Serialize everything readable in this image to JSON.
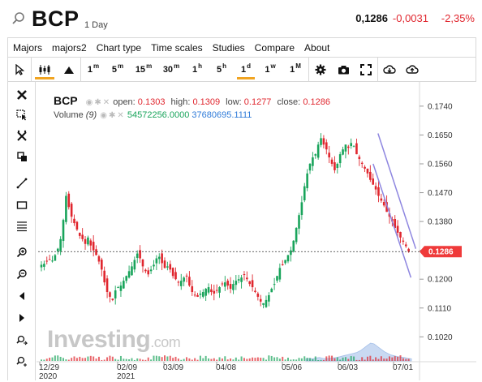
{
  "header": {
    "symbol": "BCP",
    "interval": "1 Day",
    "price": "0,1286",
    "change": "-0,0031",
    "change_pct": "-2,35%"
  },
  "menu": [
    "Majors",
    "majors2",
    "Chart type",
    "Time scales",
    "Studies",
    "Compare",
    "About"
  ],
  "toolbar": {
    "timeframes": [
      {
        "base": "1",
        "sup": "m"
      },
      {
        "base": "5",
        "sup": "m"
      },
      {
        "base": "15",
        "sup": "m"
      },
      {
        "base": "30",
        "sup": "m"
      },
      {
        "base": "1",
        "sup": "h"
      },
      {
        "base": "5",
        "sup": "h"
      },
      {
        "base": "1",
        "sup": "d"
      },
      {
        "base": "1",
        "sup": "w"
      },
      {
        "base": "1",
        "sup": "M"
      }
    ],
    "active_timeframe": "1d"
  },
  "legend": {
    "symbol": "BCP",
    "open_label": "open:",
    "open": "0.1303",
    "high_label": "high:",
    "high": "0.1309",
    "low_label": "low:",
    "low": "0.1277",
    "close_label": "close:",
    "close": "0.1286",
    "volume_label": "Volume",
    "volume_period": "(9)",
    "volume_value": "54572256.0000",
    "volume_ma": "37680695.1111"
  },
  "watermark": {
    "brand": "Investing",
    "suffix": ".com"
  },
  "colors": {
    "up": "#19a45b",
    "down": "#e0262e",
    "channel": "#8e86e0",
    "volume_area": "#bcd0ef",
    "last_price_tag": "#ef3a3a"
  },
  "chart_data": {
    "type": "candlestick",
    "title": "BCP",
    "y_ticks": [
      "0.1740",
      "0.1650",
      "0.1560",
      "0.1470",
      "0.1380",
      "0.1290",
      "0.1200",
      "0.1110",
      "0.1020"
    ],
    "ylim": [
      0.0955,
      0.1765
    ],
    "x_ticks": [
      {
        "label": "12/29",
        "sub": "2020"
      },
      {
        "label": "02/09",
        "sub": "2021"
      },
      {
        "label": "03/09",
        "sub": ""
      },
      {
        "label": "04/08",
        "sub": ""
      },
      {
        "label": "05/06",
        "sub": ""
      },
      {
        "label": "06/03",
        "sub": ""
      },
      {
        "label": "07/01",
        "sub": ""
      }
    ],
    "last_price": "0.1286",
    "grid": false,
    "close_series": [
      0.1245,
      0.1248,
      0.1255,
      0.1262,
      0.1258,
      0.1275,
      0.1295,
      0.1325,
      0.1385,
      0.146,
      0.1425,
      0.1395,
      0.1375,
      0.1355,
      0.1335,
      0.1325,
      0.131,
      0.133,
      0.1305,
      0.129,
      0.1275,
      0.1255,
      0.123,
      0.119,
      0.116,
      0.1145,
      0.1135,
      0.1165,
      0.1175,
      0.118,
      0.1195,
      0.121,
      0.1225,
      0.124,
      0.126,
      0.128,
      0.1265,
      0.124,
      0.1225,
      0.1215,
      0.123,
      0.1245,
      0.1265,
      0.127,
      0.125,
      0.1235,
      0.124,
      0.123,
      0.121,
      0.12,
      0.119,
      0.1195,
      0.1205,
      0.121,
      0.118,
      0.116,
      0.115,
      0.1145,
      0.1155,
      0.116,
      0.117,
      0.1175,
      0.116,
      0.1155,
      0.1165,
      0.1175,
      0.1185,
      0.119,
      0.118,
      0.117,
      0.1185,
      0.1195,
      0.12,
      0.1205,
      0.1215,
      0.12,
      0.1185,
      0.1175,
      0.116,
      0.1145,
      0.113,
      0.1125,
      0.1135,
      0.115,
      0.117,
      0.1185,
      0.121,
      0.1235,
      0.1245,
      0.126,
      0.1275,
      0.129,
      0.132,
      0.136,
      0.14,
      0.144,
      0.149,
      0.153,
      0.156,
      0.158,
      0.159,
      0.162,
      0.164,
      0.162,
      0.1605,
      0.158,
      0.156,
      0.154,
      0.156,
      0.159,
      0.1605,
      0.162,
      0.161,
      0.1625,
      0.1615,
      0.159,
      0.1575,
      0.156,
      0.1545,
      0.153,
      0.151,
      0.1495,
      0.148,
      0.146,
      0.1445,
      0.143,
      0.141,
      0.1395,
      0.138,
      0.136,
      0.1345,
      0.133,
      0.1317,
      0.1303,
      0.1286
    ],
    "volume_profile": [
      0.05,
      0.06,
      0.05,
      0.07,
      0.08,
      0.06,
      0.05,
      0.06,
      0.07,
      0.08,
      0.1,
      0.12,
      0.14,
      0.16,
      0.18,
      0.2,
      0.24,
      0.3,
      0.36,
      0.42,
      0.4,
      0.34,
      0.28,
      0.22,
      0.18,
      0.14,
      0.12,
      0.1,
      0.09,
      0.08,
      0.06,
      0.05
    ]
  }
}
